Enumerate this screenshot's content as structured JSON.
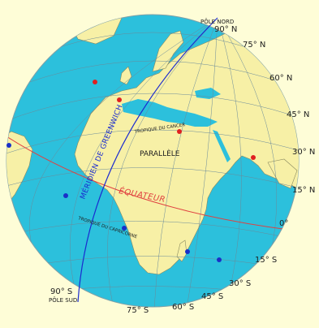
{
  "colors": {
    "background": "#fefdd7",
    "ocean": "#2cc0dc",
    "land": "#f7f0a6",
    "grid": "#6a8a9a",
    "meridian": "#1a2ad0",
    "equator": "#e04040",
    "dot_red": "#e02020",
    "dot_blue": "#1a30c8"
  },
  "poles": {
    "north": "PÔLE NORD",
    "north_deg": "90° N",
    "south": "PÔLE SUD",
    "south_deg": "90° S"
  },
  "latitudes_north": [
    "75° N",
    "60° N",
    "45° N",
    "30° N",
    "15° N"
  ],
  "equator_deg": "0°",
  "latitudes_south": [
    "15° S",
    "30° S",
    "45° S",
    "60° S",
    "75° S"
  ],
  "features": {
    "meridian": "MÉRIDIEN DE GREENWICH",
    "equator": "ÉQUATEUR",
    "parallel": "PARALLÈLE",
    "tropic_cancer": "TROPIQUE DU CANCER",
    "tropic_capricorn": "TROPIQUE DU CAPRICORNE"
  },
  "icons": {
    "globe": "globe-icon",
    "point": "location-dot-icon"
  }
}
